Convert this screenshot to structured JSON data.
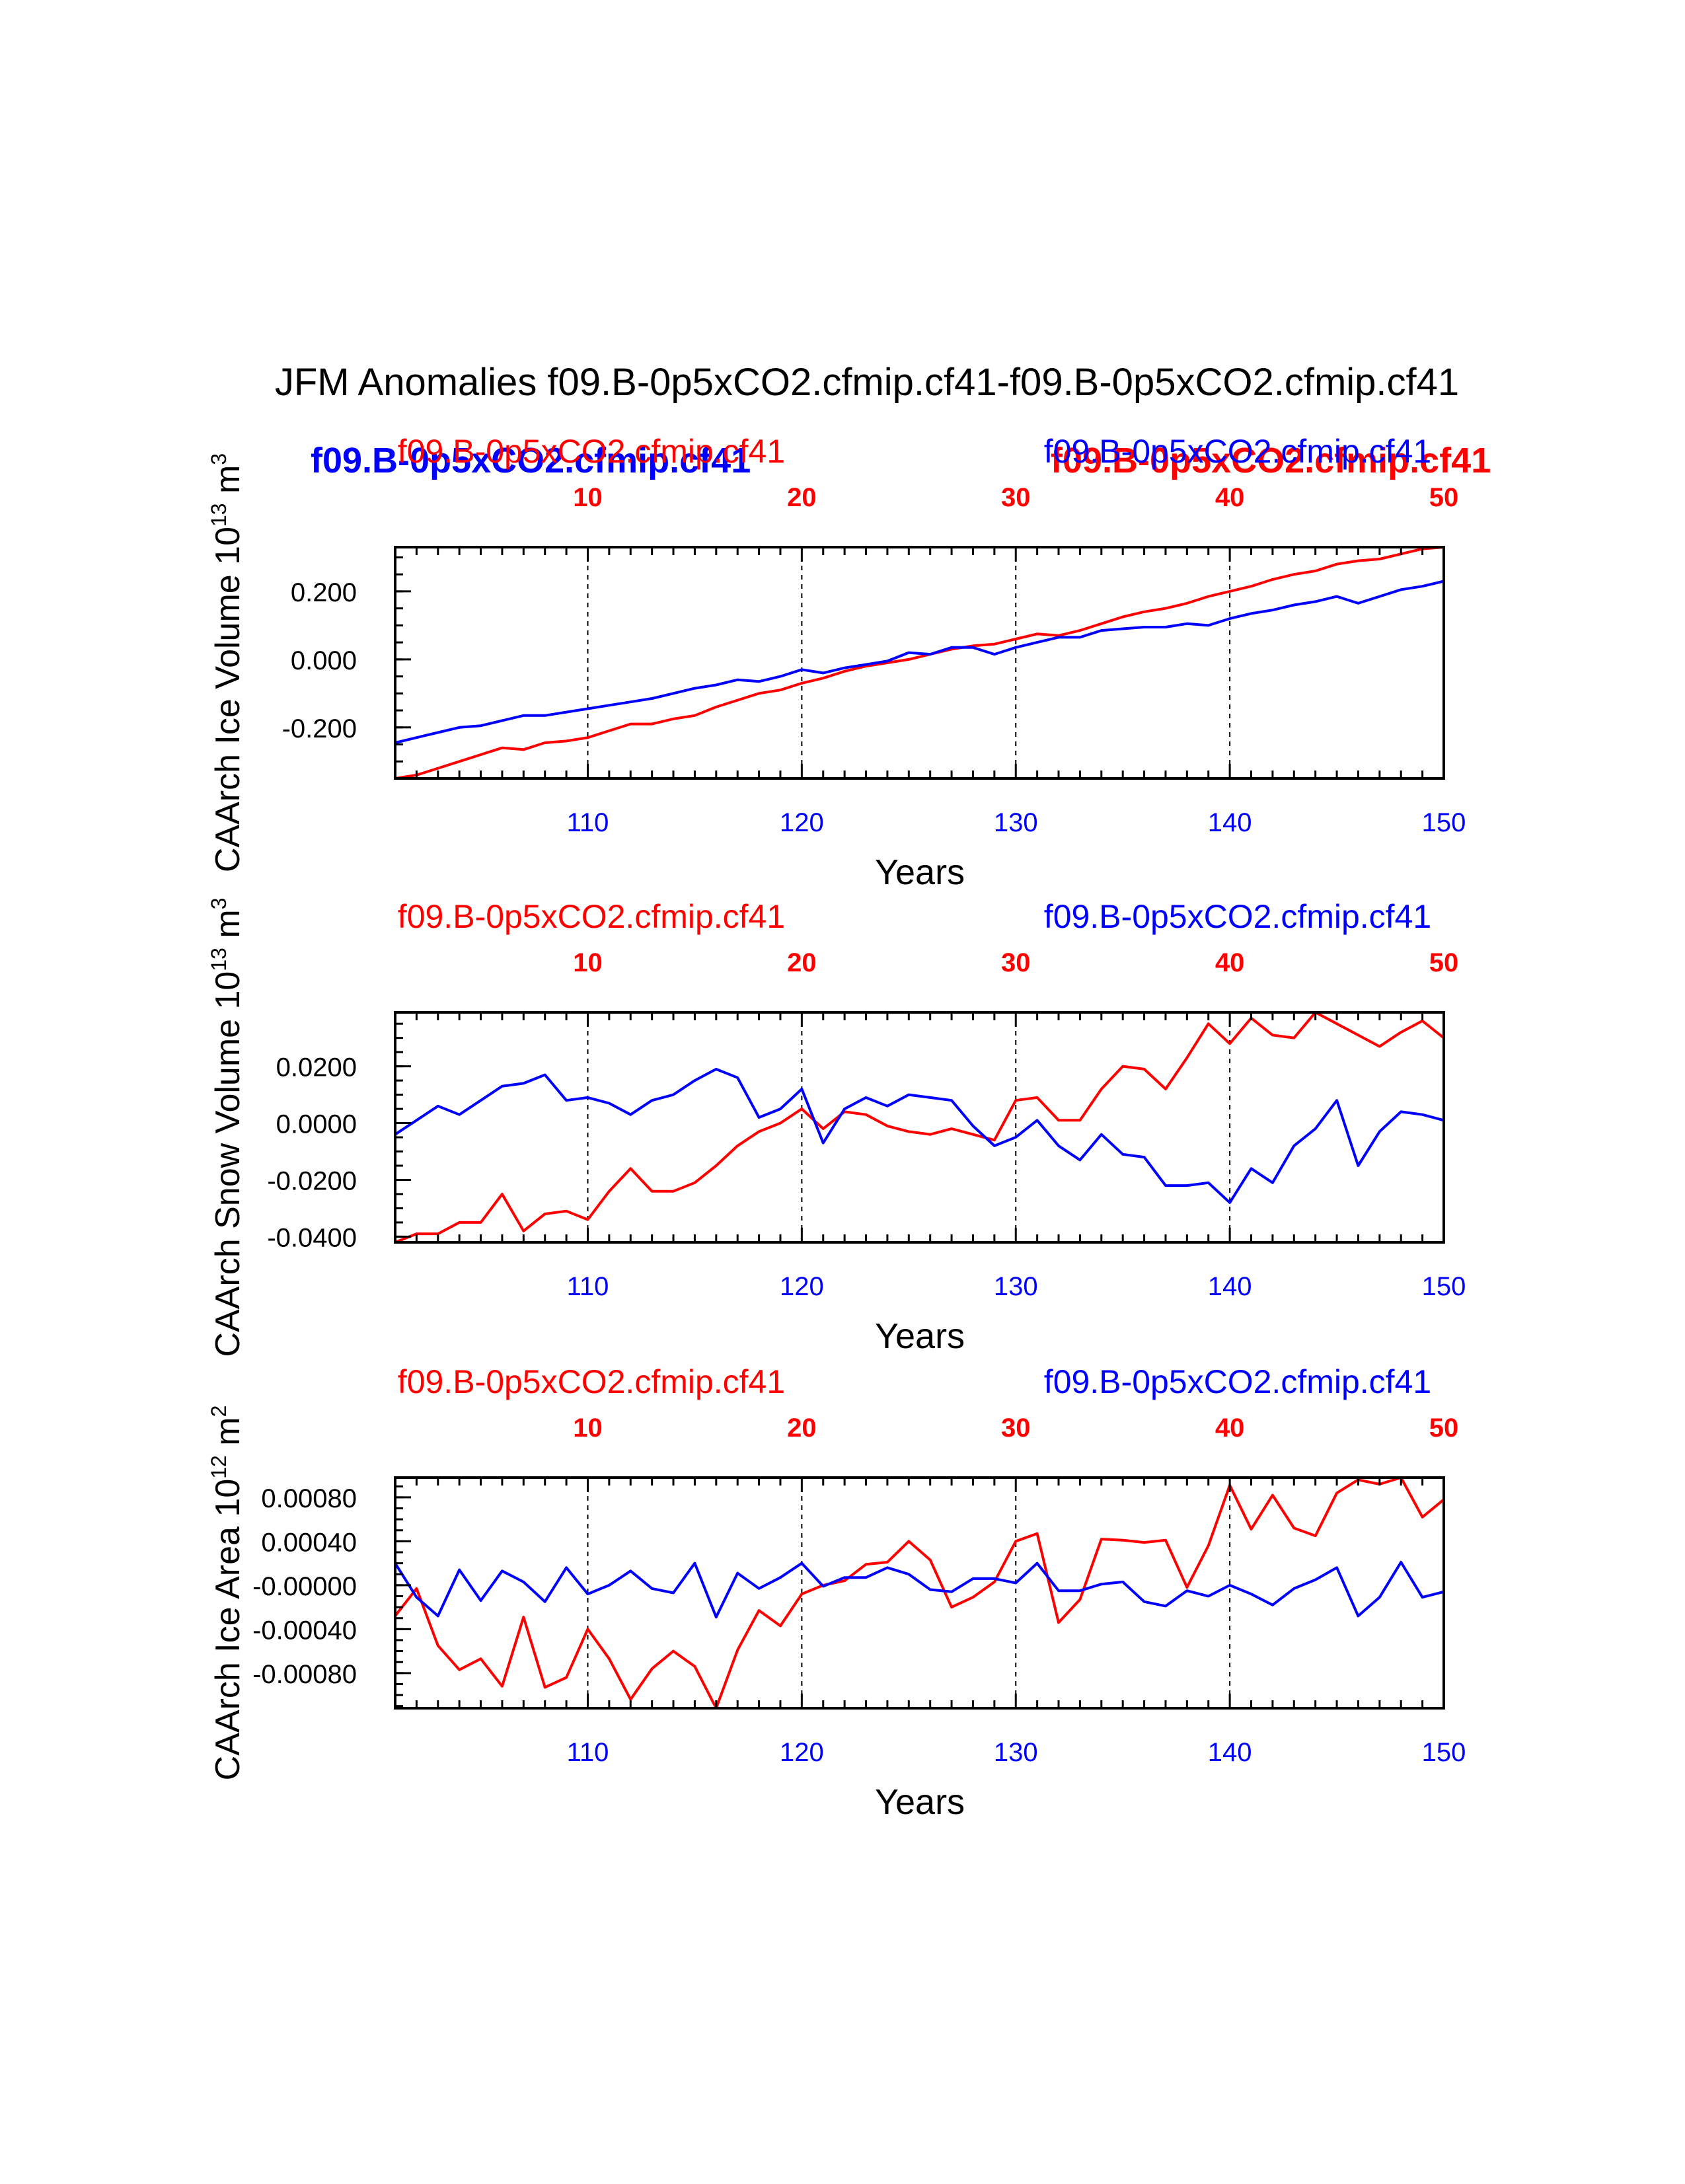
{
  "title": "JFM Anomalies f09.B-0p5xCO2.cfmip.cf41-f09.B-0p5xCO2.cfmip.cf41",
  "xlabel": "Years",
  "legend_bold": {
    "blue": "f09.B-0p5xCO2.cfmip.cf41",
    "red": "f09.B-0p5xCO2.cfmip.cf41"
  },
  "colors": {
    "red": "#ff0000",
    "blue": "#0000ff",
    "axis": "#000000"
  },
  "chart_data": [
    {
      "type": "line",
      "ylabel": "CAArch Ice Volume 10",
      "ylabel_exp": "13",
      "ylabel_unit": "m",
      "ylabel_unit_exp": "3",
      "top_left_label": "f09.B-0p5xCO2.cfmip.cf41",
      "top_right_label": "f09.B-0p5xCO2.cfmip.cf41",
      "xlim_bottom": [
        101,
        150
      ],
      "xlim_top": [
        1,
        50
      ],
      "bottom_ticks": [
        "110",
        "120",
        "130",
        "140",
        "150"
      ],
      "top_ticks": [
        "10",
        "20",
        "30",
        "40",
        "50"
      ],
      "ylim": [
        -0.35,
        0.33
      ],
      "yticks": [
        -0.2,
        0.0,
        0.2
      ],
      "ytick_labels": [
        "-0.200",
        "0.000",
        "0.200"
      ],
      "yminor_step": 0.05,
      "series": [
        {
          "name": "f09.B-0p5xCO2.cfmip.cf41 (red)",
          "color": "red",
          "values": [
            -0.35,
            -0.34,
            -0.32,
            -0.3,
            -0.28,
            -0.26,
            -0.265,
            -0.245,
            -0.24,
            -0.23,
            -0.21,
            -0.19,
            -0.19,
            -0.175,
            -0.165,
            -0.14,
            -0.12,
            -0.1,
            -0.09,
            -0.07,
            -0.055,
            -0.035,
            -0.02,
            -0.01,
            0.0,
            0.015,
            0.03,
            0.04,
            0.045,
            0.06,
            0.075,
            0.07,
            0.085,
            0.105,
            0.125,
            0.14,
            0.15,
            0.165,
            0.185,
            0.2,
            0.215,
            0.235,
            0.25,
            0.26,
            0.28,
            0.29,
            0.295,
            0.31,
            0.325,
            0.33
          ]
        },
        {
          "name": "f09.B-0p5xCO2.cfmip.cf41 (blue)",
          "color": "blue",
          "values": [
            -0.245,
            -0.23,
            -0.215,
            -0.2,
            -0.195,
            -0.18,
            -0.165,
            -0.165,
            -0.155,
            -0.145,
            -0.135,
            -0.125,
            -0.115,
            -0.1,
            -0.085,
            -0.075,
            -0.06,
            -0.065,
            -0.05,
            -0.03,
            -0.04,
            -0.025,
            -0.015,
            -0.005,
            0.02,
            0.015,
            0.035,
            0.035,
            0.015,
            0.035,
            0.05,
            0.065,
            0.065,
            0.085,
            0.09,
            0.095,
            0.095,
            0.105,
            0.1,
            0.12,
            0.135,
            0.145,
            0.16,
            0.17,
            0.185,
            0.165,
            0.185,
            0.205,
            0.215,
            0.23
          ]
        }
      ]
    },
    {
      "type": "line",
      "ylabel": "CAArch Snow Volume 10",
      "ylabel_exp": "13",
      "ylabel_unit": "m",
      "ylabel_unit_exp": "3",
      "top_left_label": "f09.B-0p5xCO2.cfmip.cf41",
      "top_right_label": "f09.B-0p5xCO2.cfmip.cf41",
      "xlim_bottom": [
        101,
        150
      ],
      "xlim_top": [
        1,
        50
      ],
      "bottom_ticks": [
        "110",
        "120",
        "130",
        "140",
        "150"
      ],
      "top_ticks": [
        "10",
        "20",
        "30",
        "40",
        "50"
      ],
      "ylim": [
        -0.042,
        0.039
      ],
      "yticks": [
        -0.04,
        -0.02,
        0.0,
        0.02
      ],
      "ytick_labels": [
        "-0.0400",
        "-0.0200",
        "0.0000",
        "0.0200"
      ],
      "yminor_step": 0.005,
      "series": [
        {
          "name": "f09.B-0p5xCO2.cfmip.cf41 (red)",
          "color": "red",
          "values": [
            -0.042,
            -0.039,
            -0.039,
            -0.035,
            -0.035,
            -0.025,
            -0.038,
            -0.032,
            -0.031,
            -0.034,
            -0.024,
            -0.016,
            -0.024,
            -0.024,
            -0.021,
            -0.015,
            -0.008,
            -0.003,
            0.0,
            0.005,
            -0.002,
            0.004,
            0.003,
            -0.001,
            -0.003,
            -0.004,
            -0.002,
            -0.004,
            -0.006,
            0.008,
            0.009,
            0.001,
            0.001,
            0.012,
            0.02,
            0.019,
            0.012,
            0.023,
            0.035,
            0.028,
            0.037,
            0.031,
            0.03,
            0.039,
            0.035,
            0.031,
            0.027,
            0.032,
            0.036,
            0.03
          ]
        },
        {
          "name": "f09.B-0p5xCO2.cfmip.cf41 (blue)",
          "color": "blue",
          "values": [
            -0.004,
            0.001,
            0.006,
            0.003,
            0.008,
            0.013,
            0.014,
            0.017,
            0.008,
            0.009,
            0.007,
            0.003,
            0.008,
            0.01,
            0.015,
            0.019,
            0.016,
            0.002,
            0.005,
            0.012,
            -0.007,
            0.005,
            0.009,
            0.006,
            0.01,
            0.009,
            0.008,
            -0.001,
            -0.008,
            -0.005,
            0.001,
            -0.008,
            -0.013,
            -0.004,
            -0.011,
            -0.012,
            -0.022,
            -0.022,
            -0.021,
            -0.028,
            -0.016,
            -0.021,
            -0.008,
            -0.002,
            0.008,
            -0.015,
            -0.003,
            0.004,
            0.003,
            0.001
          ]
        }
      ]
    },
    {
      "type": "line",
      "ylabel": "CAArch Ice Area 10",
      "ylabel_exp": "12",
      "ylabel_unit": "m",
      "ylabel_unit_exp": "2",
      "top_left_label": "f09.B-0p5xCO2.cfmip.cf41",
      "top_right_label": "f09.B-0p5xCO2.cfmip.cf41",
      "xlim_bottom": [
        101,
        150
      ],
      "xlim_top": [
        1,
        50
      ],
      "bottom_ticks": [
        "110",
        "120",
        "130",
        "140",
        "150"
      ],
      "top_ticks": [
        "10",
        "20",
        "30",
        "40",
        "50"
      ],
      "ylim": [
        -0.00112,
        0.00098
      ],
      "yticks": [
        -0.0008,
        -0.0004,
        0.0,
        0.0004,
        0.0008
      ],
      "ytick_labels": [
        "-0.00080",
        "-0.00040",
        "-0.00000",
        "0.00040",
        "0.00080"
      ],
      "yminor_step": 0.0001,
      "series": [
        {
          "name": "f09.B-0p5xCO2.cfmip.cf41 (red)",
          "color": "red",
          "values": [
            -0.00028,
            -3e-05,
            -0.00055,
            -0.00077,
            -0.00067,
            -0.00092,
            -0.00029,
            -0.00093,
            -0.00084,
            -0.0004,
            -0.00067,
            -0.00104,
            -0.00076,
            -0.0006,
            -0.00074,
            -0.00112,
            -0.00059,
            -0.00023,
            -0.00037,
            -8e-05,
            0.0,
            4e-05,
            0.00019,
            0.00021,
            0.0004,
            0.00023,
            -0.0002,
            -0.00011,
            3e-05,
            0.0004,
            0.00047,
            -0.00034,
            -0.00013,
            0.00042,
            0.00041,
            0.00039,
            0.00041,
            -2e-05,
            0.00036,
            0.00091,
            0.00051,
            0.00082,
            0.00052,
            0.00045,
            0.00084,
            0.00096,
            0.00092,
            0.00098,
            0.00062,
            0.00078
          ]
        },
        {
          "name": "f09.B-0p5xCO2.cfmip.cf41 (blue)",
          "color": "blue",
          "values": [
            0.0002,
            -0.00011,
            -0.00028,
            0.00014,
            -0.00014,
            0.00013,
            3e-05,
            -0.00015,
            0.00016,
            -8e-05,
            0.0,
            0.00013,
            -3e-05,
            -7e-05,
            0.0002,
            -0.00029,
            0.00011,
            -3e-05,
            7e-05,
            0.0002,
            -1e-05,
            7e-05,
            7e-05,
            0.00016,
            0.0001,
            -4e-05,
            -6e-05,
            6e-05,
            6e-05,
            2e-05,
            0.0002,
            -5e-05,
            -5e-05,
            1e-05,
            3e-05,
            -0.00015,
            -0.00019,
            -5e-05,
            -0.0001,
            0.0,
            -8e-05,
            -0.00018,
            -3e-05,
            5e-05,
            0.00016,
            -0.00028,
            -0.00011,
            0.00021,
            -0.00011,
            -6e-05
          ]
        }
      ]
    }
  ]
}
